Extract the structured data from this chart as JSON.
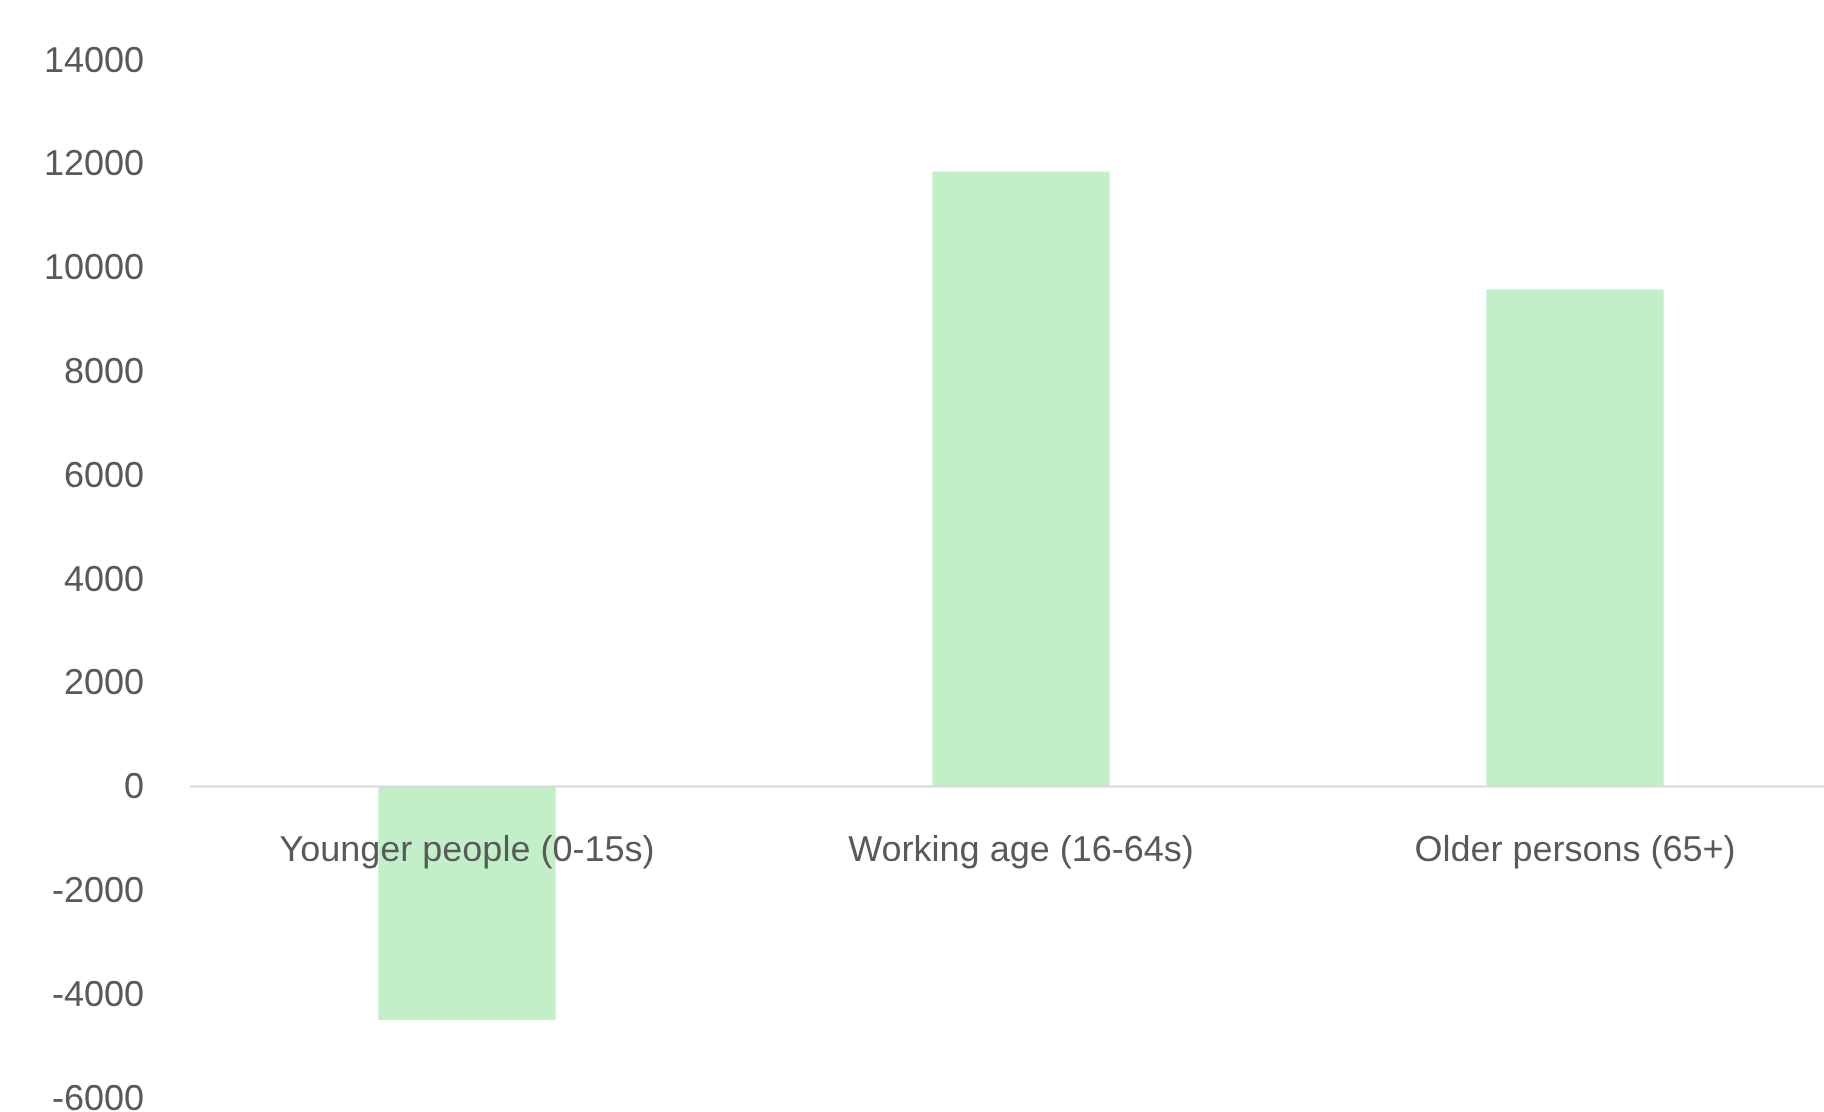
{
  "chart_data": {
    "type": "bar",
    "categories": [
      "Younger people (0-15s)",
      "Working age (16-64s)",
      "Older persons (65+)"
    ],
    "values": [
      -4500,
      11850,
      9580
    ],
    "color": "#c3efc8",
    "ylim": [
      -6000,
      14000
    ],
    "yticks": [
      -6000,
      -4000,
      -2000,
      0,
      2000,
      4000,
      6000,
      8000,
      10000,
      12000,
      14000
    ],
    "grid": false
  }
}
